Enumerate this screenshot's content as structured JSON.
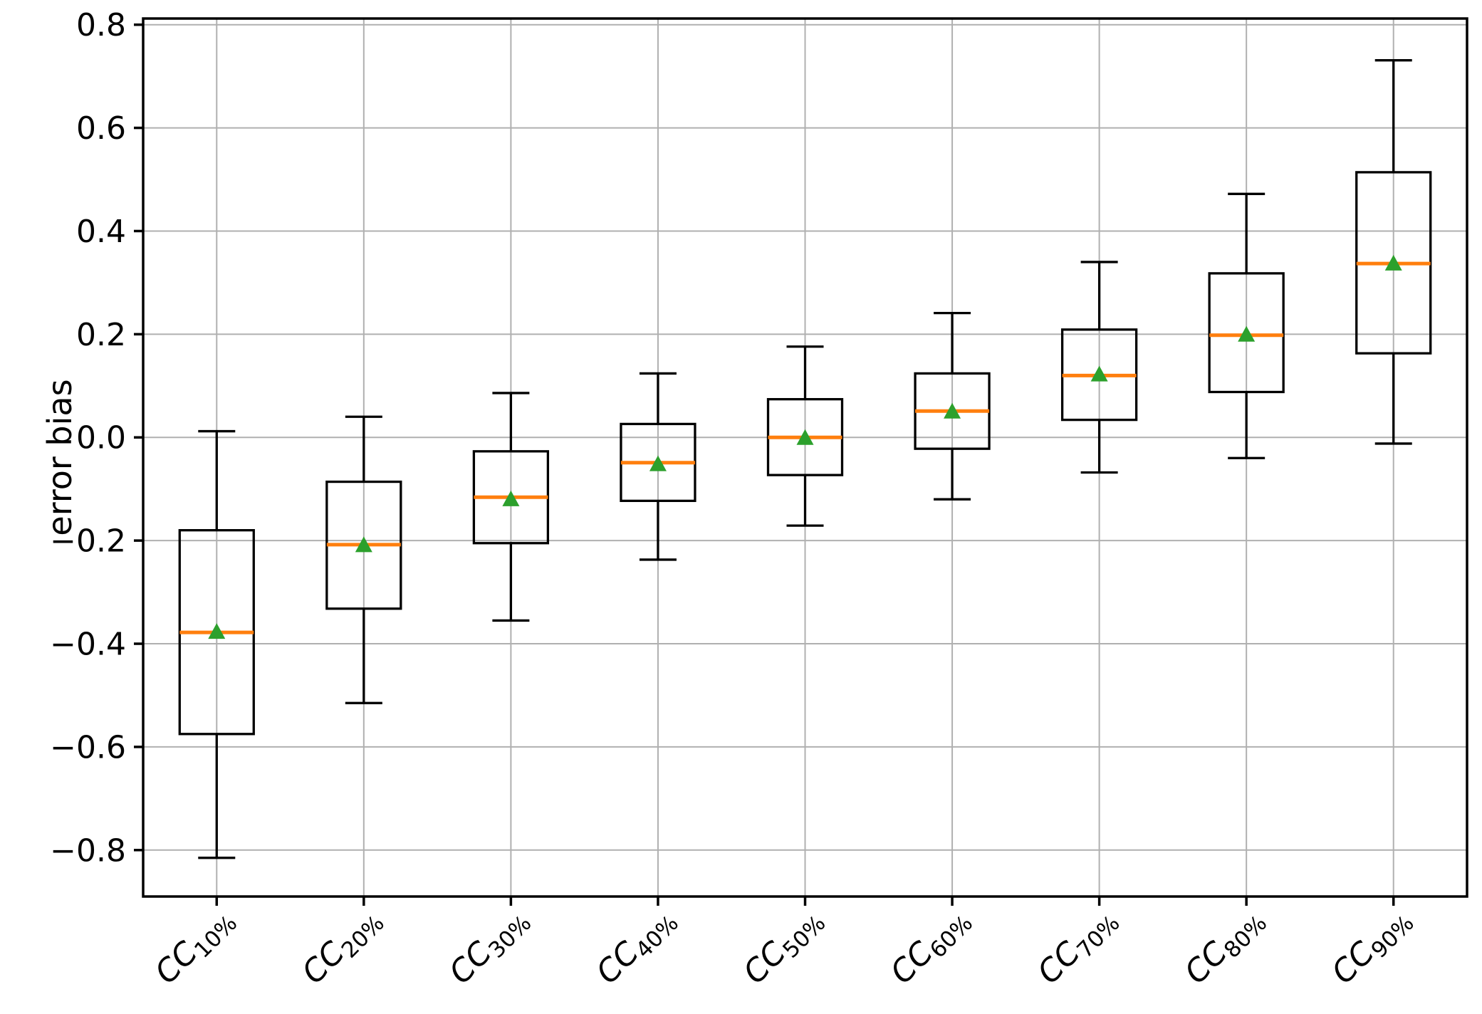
{
  "figure": {
    "background": "#ffffff",
    "colors": {
      "box_edge": "#000000",
      "whisker": "#000000",
      "median": "#ff7f0e",
      "mean_marker": "#2ca02c",
      "grid": "#b0b0b0",
      "spine": "#000000",
      "tick_label": "#000000"
    }
  },
  "chart_data": {
    "type": "boxplot",
    "title": "",
    "xlabel": "",
    "ylabel": "error bias",
    "grid": true,
    "legend": "none",
    "orientation": "vertical",
    "xlim": [
      0.5,
      9.5
    ],
    "ylim": [
      -0.89,
      0.812
    ],
    "yticks": [
      {
        "value": 0.8,
        "label": "0.8"
      },
      {
        "value": 0.6,
        "label": "0.6"
      },
      {
        "value": 0.4,
        "label": "0.4"
      },
      {
        "value": 0.2,
        "label": "0.2"
      },
      {
        "value": 0.0,
        "label": "0.0"
      },
      {
        "value": -0.2,
        "label": "−0.2"
      },
      {
        "value": -0.4,
        "label": "−0.4"
      },
      {
        "value": -0.6,
        "label": "−0.6"
      },
      {
        "value": -0.8,
        "label": "−0.8"
      }
    ],
    "categories": [
      {
        "base": "CC",
        "sub": "10%"
      },
      {
        "base": "CC",
        "sub": "20%"
      },
      {
        "base": "CC",
        "sub": "30%"
      },
      {
        "base": "CC",
        "sub": "40%"
      },
      {
        "base": "CC",
        "sub": "50%"
      },
      {
        "base": "CC",
        "sub": "60%"
      },
      {
        "base": "CC",
        "sub": "70%"
      },
      {
        "base": "CC",
        "sub": "80%"
      },
      {
        "base": "CC",
        "sub": "90%"
      }
    ],
    "boxes": [
      {
        "category": "CC10%",
        "position": 1,
        "whisker_low": -0.815,
        "q1": -0.575,
        "median": -0.378,
        "q3": -0.18,
        "whisker_high": 0.012,
        "mean": -0.378
      },
      {
        "category": "CC20%",
        "position": 2,
        "whisker_low": -0.515,
        "q1": -0.332,
        "median": -0.208,
        "q3": -0.086,
        "whisker_high": 0.04,
        "mean": -0.21
      },
      {
        "category": "CC30%",
        "position": 3,
        "whisker_low": -0.355,
        "q1": -0.205,
        "median": -0.116,
        "q3": -0.027,
        "whisker_high": 0.086,
        "mean": -0.121
      },
      {
        "category": "CC40%",
        "position": 4,
        "whisker_low": -0.237,
        "q1": -0.123,
        "median": -0.049,
        "q3": 0.026,
        "whisker_high": 0.124,
        "mean": -0.053
      },
      {
        "category": "CC50%",
        "position": 5,
        "whisker_low": -0.171,
        "q1": -0.073,
        "median": 0.0,
        "q3": 0.074,
        "whisker_high": 0.176,
        "mean": -0.002
      },
      {
        "category": "CC60%",
        "position": 6,
        "whisker_low": -0.12,
        "q1": -0.022,
        "median": 0.051,
        "q3": 0.124,
        "whisker_high": 0.241,
        "mean": 0.049
      },
      {
        "category": "CC70%",
        "position": 7,
        "whisker_low": -0.068,
        "q1": 0.034,
        "median": 0.12,
        "q3": 0.209,
        "whisker_high": 0.34,
        "mean": 0.121
      },
      {
        "category": "CC80%",
        "position": 8,
        "whisker_low": -0.04,
        "q1": 0.088,
        "median": 0.198,
        "q3": 0.318,
        "whisker_high": 0.472,
        "mean": 0.198
      },
      {
        "category": "CC90%",
        "position": 9,
        "whisker_low": -0.012,
        "q1": 0.163,
        "median": 0.337,
        "q3": 0.514,
        "whisker_high": 0.731,
        "mean": 0.336
      }
    ]
  }
}
